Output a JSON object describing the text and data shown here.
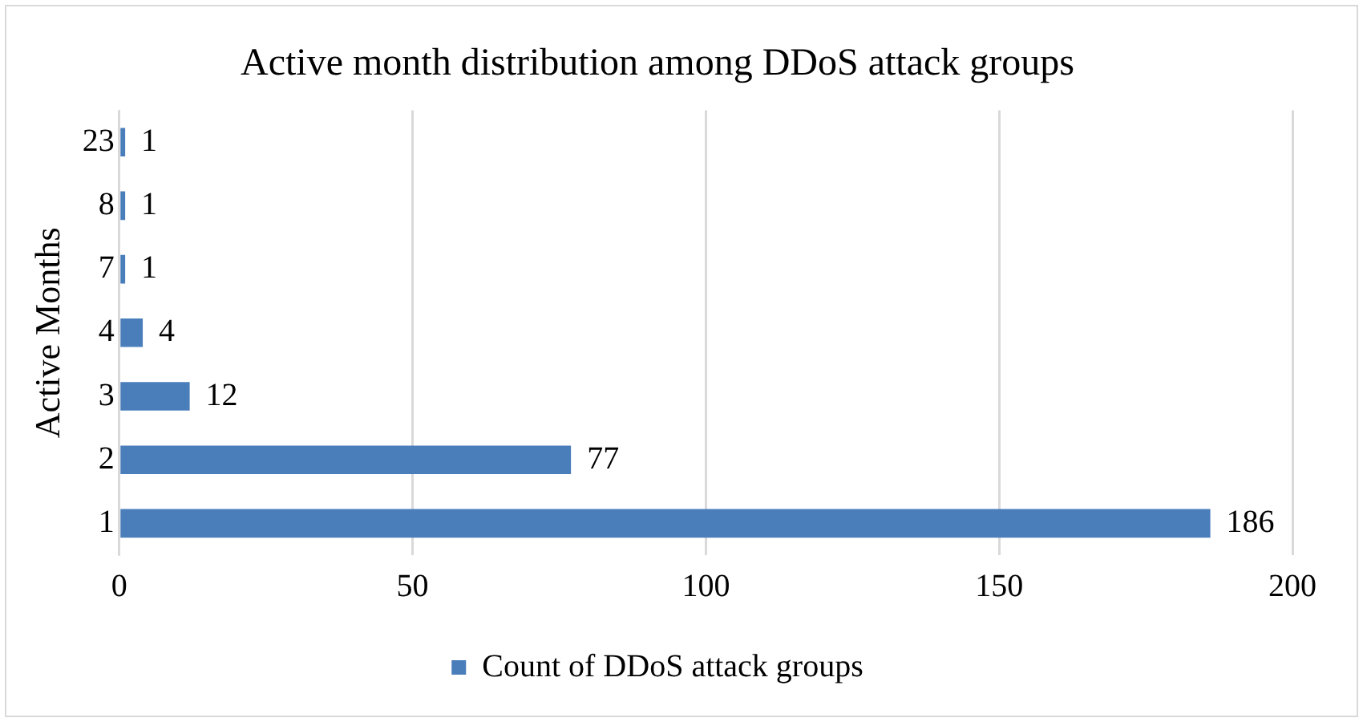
{
  "chart_data": {
    "type": "bar",
    "orientation": "horizontal",
    "title": "Active month distribution among DDoS attack groups",
    "ylabel": "Active Months",
    "categories": [
      "23",
      "8",
      "7",
      "4",
      "3",
      "2",
      "1"
    ],
    "series": [
      {
        "name": "Count of DDoS attack groups",
        "color": "#4a7ebb",
        "values": [
          1,
          1,
          1,
          4,
          12,
          77,
          186
        ]
      }
    ],
    "xlim": [
      0,
      200
    ],
    "xticks": [
      0,
      50,
      100,
      150,
      200
    ],
    "grid": "x",
    "legend": "bottom",
    "data_labels": true
  }
}
